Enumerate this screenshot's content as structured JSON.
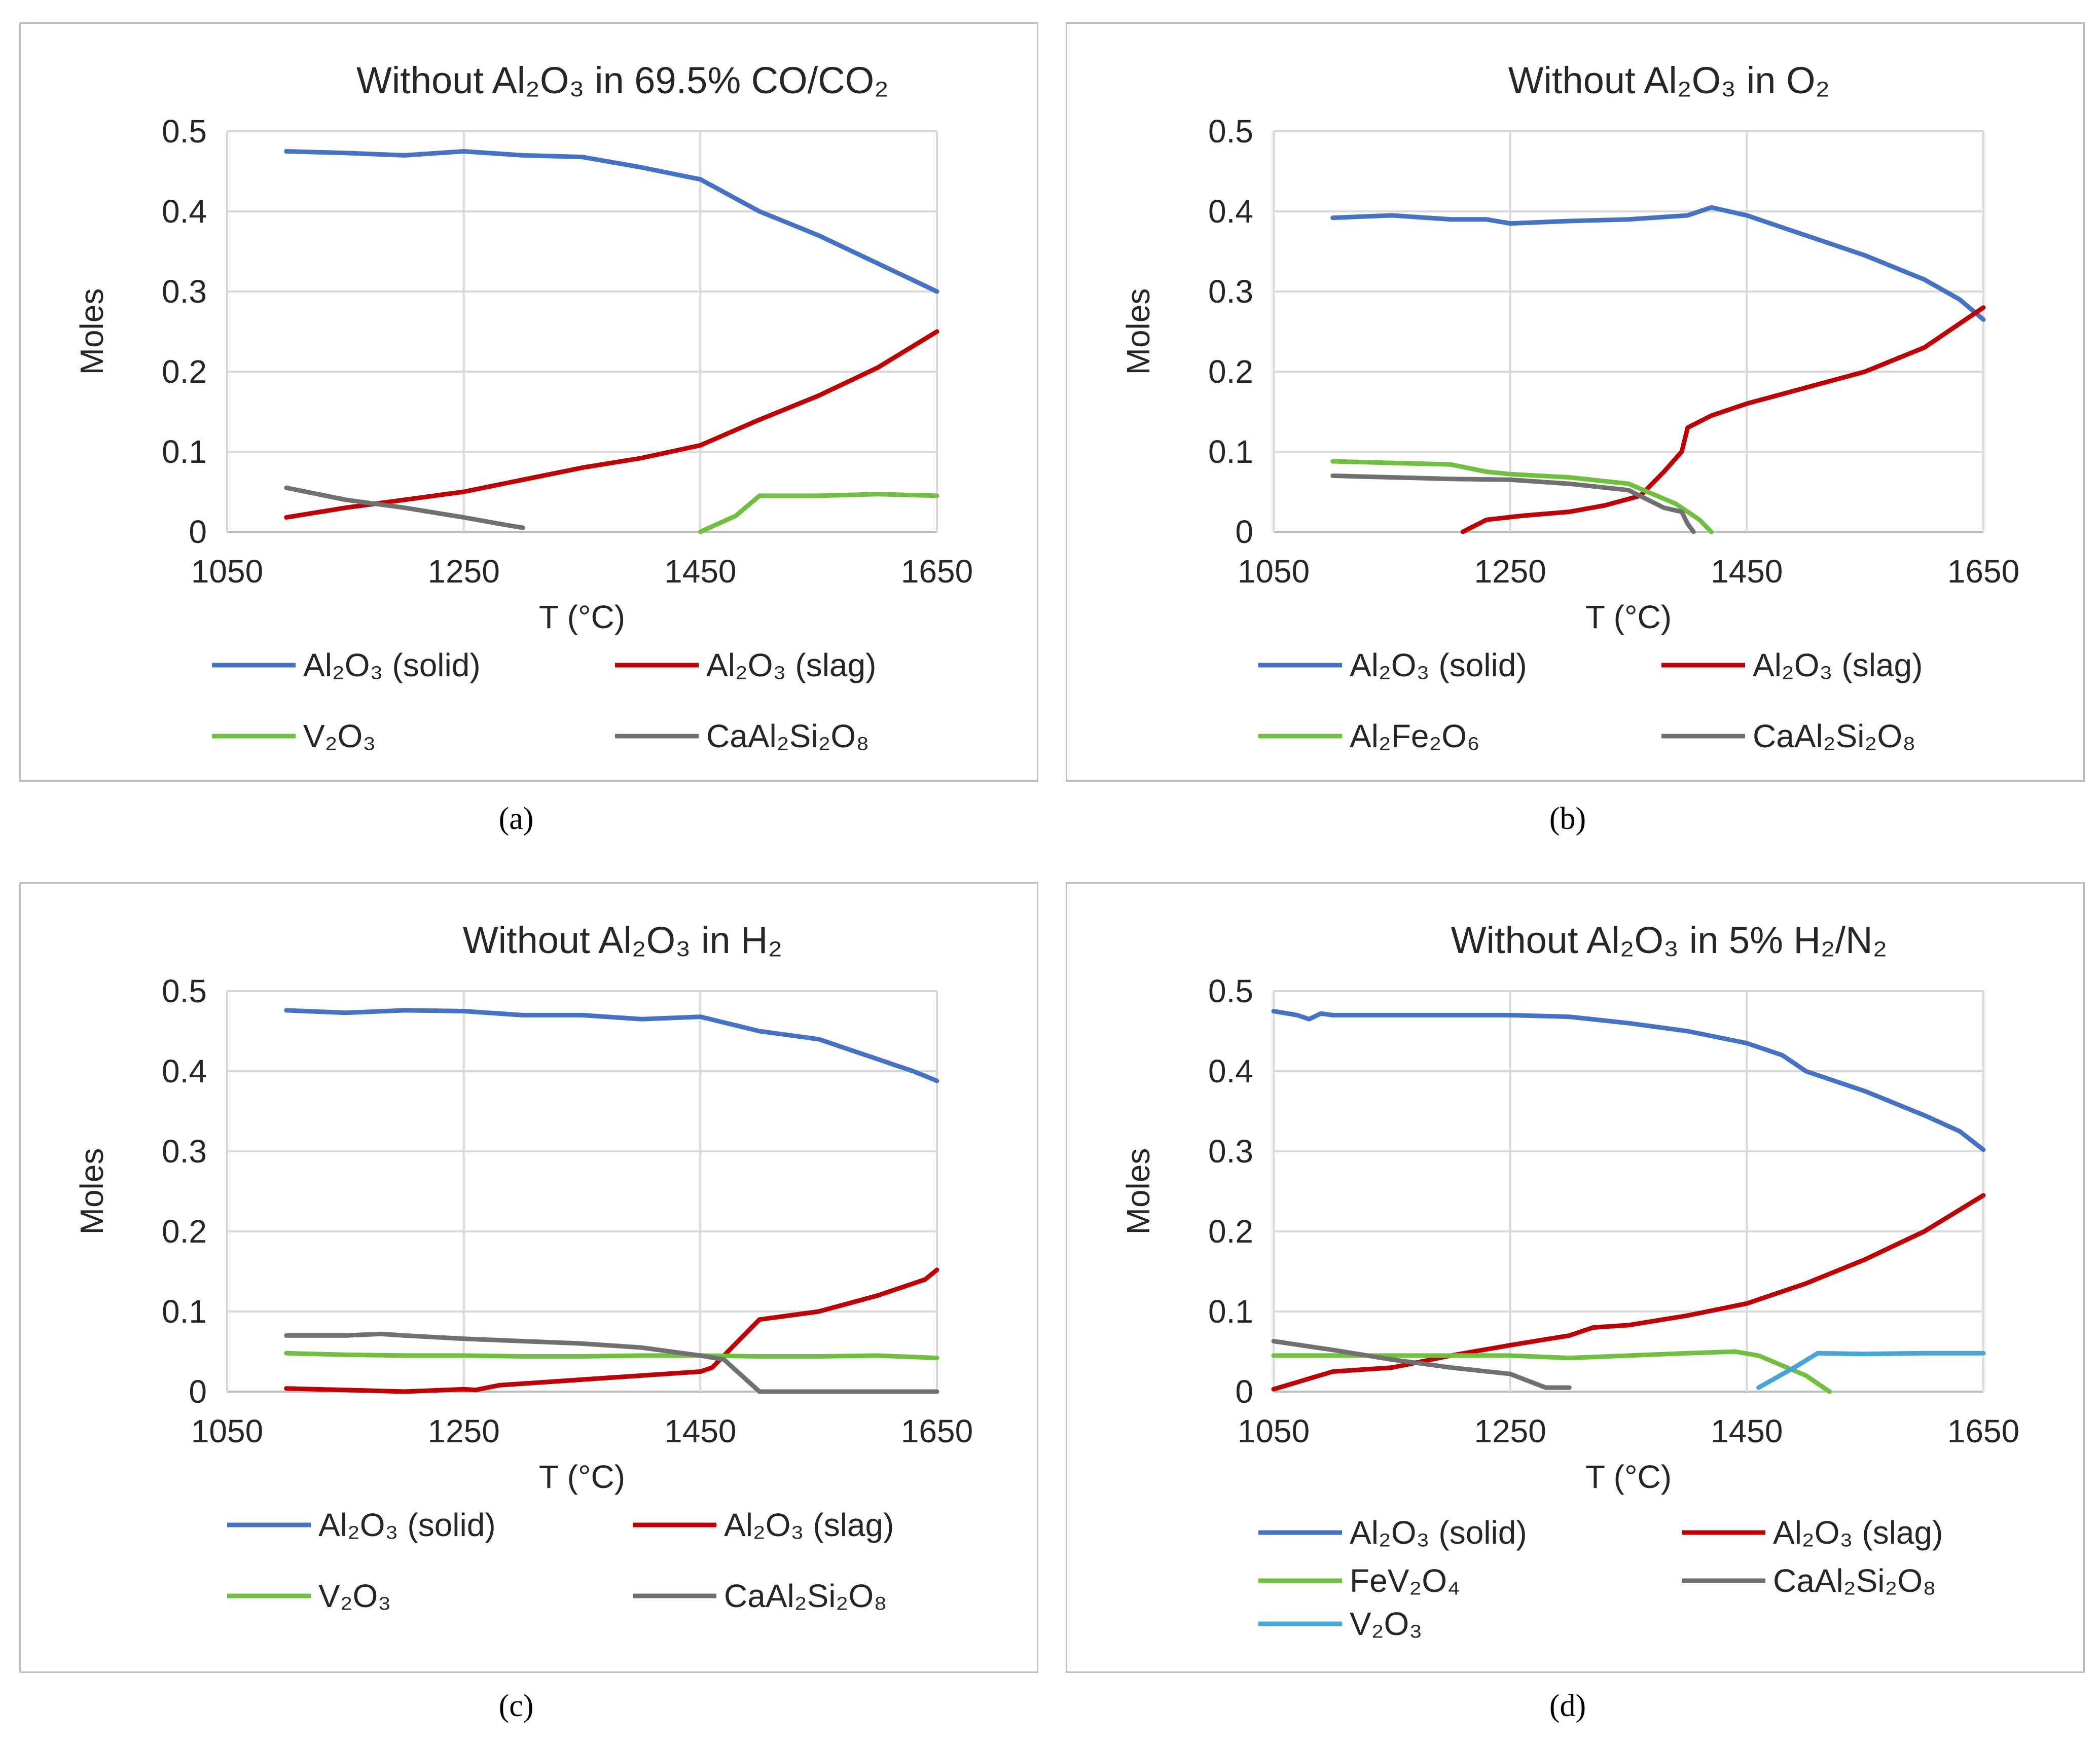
{
  "figure": {
    "panel_labels": [
      "(a)",
      "(b)",
      "(c)",
      "(d)"
    ]
  },
  "colors": {
    "al2o3_solid": "#4472C4",
    "al2o3_slag": "#C00000",
    "green": "#70C040",
    "gray": "#707070",
    "cyan": "#45A5DA",
    "grid": "#D9D9D9",
    "border": "#BFBFBF",
    "text": "#262626"
  },
  "chart_data": [
    {
      "type": "line",
      "title": "Without Al₂O₃ in 69.5% CO/CO₂",
      "xlabel": "T (°C)",
      "ylabel": "Moles",
      "xlim": [
        1050,
        1650
      ],
      "ylim": [
        0,
        0.5
      ],
      "xticks": [
        "1050",
        "1250",
        "1450",
        "1650"
      ],
      "yticks": [
        "0",
        "0.1",
        "0.2",
        "0.3",
        "0.4",
        "0.5"
      ],
      "legend_position": "bottom",
      "series": [
        {
          "name": "Al₂O₃ (solid)",
          "color_key": "al2o3_solid",
          "x": [
            1100,
            1150,
            1200,
            1250,
            1300,
            1350,
            1400,
            1450,
            1500,
            1550,
            1600,
            1650
          ],
          "y": [
            0.475,
            0.473,
            0.47,
            0.475,
            0.47,
            0.468,
            0.455,
            0.44,
            0.4,
            0.37,
            0.335,
            0.3
          ]
        },
        {
          "name": "Al₂O₃ (slag)",
          "color_key": "al2o3_slag",
          "x": [
            1100,
            1150,
            1200,
            1250,
            1300,
            1350,
            1400,
            1450,
            1500,
            1550,
            1600,
            1650
          ],
          "y": [
            0.018,
            0.03,
            0.04,
            0.05,
            0.065,
            0.08,
            0.092,
            0.108,
            0.14,
            0.17,
            0.205,
            0.25
          ]
        },
        {
          "name": "V₂O₃",
          "color_key": "green",
          "x": [
            1450,
            1480,
            1500,
            1550,
            1600,
            1650
          ],
          "y": [
            0.0,
            0.02,
            0.045,
            0.045,
            0.047,
            0.045
          ]
        },
        {
          "name": "CaAl₂Si₂O₈",
          "color_key": "gray",
          "x": [
            1100,
            1150,
            1200,
            1250,
            1280,
            1300
          ],
          "y": [
            0.055,
            0.04,
            0.03,
            0.018,
            0.01,
            0.005
          ]
        }
      ]
    },
    {
      "type": "line",
      "title": "Without Al₂O₃ in O₂",
      "xlabel": "T (°C)",
      "ylabel": "Moles",
      "xlim": [
        1050,
        1650
      ],
      "ylim": [
        0,
        0.5
      ],
      "xticks": [
        "1050",
        "1250",
        "1450",
        "1650"
      ],
      "yticks": [
        "0",
        "0.1",
        "0.2",
        "0.3",
        "0.4",
        "0.5"
      ],
      "legend_position": "bottom",
      "series": [
        {
          "name": "Al₂O₃ (solid)",
          "color_key": "al2o3_solid",
          "x": [
            1100,
            1150,
            1200,
            1230,
            1250,
            1300,
            1350,
            1400,
            1420,
            1450,
            1500,
            1550,
            1600,
            1630,
            1650
          ],
          "y": [
            0.392,
            0.395,
            0.39,
            0.39,
            0.385,
            0.388,
            0.39,
            0.395,
            0.405,
            0.395,
            0.37,
            0.345,
            0.315,
            0.29,
            0.265
          ]
        },
        {
          "name": "Al₂O₃ (slag)",
          "color_key": "al2o3_slag",
          "x": [
            1210,
            1230,
            1260,
            1300,
            1330,
            1360,
            1380,
            1395,
            1400,
            1420,
            1450,
            1500,
            1550,
            1600,
            1650
          ],
          "y": [
            0.0,
            0.015,
            0.02,
            0.025,
            0.033,
            0.045,
            0.075,
            0.1,
            0.13,
            0.145,
            0.16,
            0.18,
            0.2,
            0.23,
            0.28
          ]
        },
        {
          "name": "Al₂Fe₂O₆",
          "color_key": "green",
          "x": [
            1100,
            1150,
            1200,
            1230,
            1250,
            1300,
            1350,
            1390,
            1410,
            1420
          ],
          "y": [
            0.088,
            0.086,
            0.084,
            0.075,
            0.072,
            0.068,
            0.06,
            0.035,
            0.015,
            0.0
          ]
        },
        {
          "name": "CaAl₂Si₂O₈",
          "color_key": "gray",
          "x": [
            1100,
            1150,
            1200,
            1250,
            1300,
            1350,
            1380,
            1395,
            1400,
            1405
          ],
          "y": [
            0.07,
            0.068,
            0.066,
            0.065,
            0.06,
            0.052,
            0.03,
            0.025,
            0.01,
            0.0
          ]
        }
      ]
    },
    {
      "type": "line",
      "title": "Without Al₂O₃ in H₂",
      "xlabel": "T (°C)",
      "ylabel": "Moles",
      "xlim": [
        1050,
        1650
      ],
      "ylim": [
        0,
        0.5
      ],
      "xticks": [
        "1050",
        "1250",
        "1450",
        "1650"
      ],
      "yticks": [
        "0",
        "0.1",
        "0.2",
        "0.3",
        "0.4",
        "0.5"
      ],
      "legend_position": "bottom",
      "series": [
        {
          "name": "Al₂O₃ (solid)",
          "color_key": "al2o3_solid",
          "x": [
            1100,
            1150,
            1200,
            1250,
            1300,
            1350,
            1400,
            1450,
            1500,
            1550,
            1600,
            1630,
            1650
          ],
          "y": [
            0.476,
            0.473,
            0.476,
            0.475,
            0.47,
            0.47,
            0.465,
            0.468,
            0.45,
            0.44,
            0.415,
            0.4,
            0.388
          ]
        },
        {
          "name": "Al₂O₃ (slag)",
          "color_key": "al2o3_slag",
          "x": [
            1100,
            1150,
            1200,
            1250,
            1260,
            1280,
            1300,
            1350,
            1400,
            1450,
            1460,
            1480,
            1500,
            1550,
            1600,
            1640,
            1650
          ],
          "y": [
            0.004,
            0.002,
            0.0,
            0.003,
            0.002,
            0.008,
            0.01,
            0.015,
            0.02,
            0.025,
            0.03,
            0.06,
            0.09,
            0.1,
            0.12,
            0.14,
            0.152
          ]
        },
        {
          "name": "V₂O₃",
          "color_key": "green",
          "x": [
            1100,
            1150,
            1200,
            1250,
            1300,
            1350,
            1400,
            1450,
            1500,
            1550,
            1600,
            1650
          ],
          "y": [
            0.048,
            0.046,
            0.045,
            0.045,
            0.044,
            0.044,
            0.045,
            0.045,
            0.044,
            0.044,
            0.045,
            0.042
          ]
        },
        {
          "name": "CaAl₂Si₂O₈",
          "color_key": "gray",
          "x": [
            1100,
            1150,
            1180,
            1200,
            1250,
            1300,
            1350,
            1400,
            1450,
            1470,
            1485,
            1500,
            1550,
            1650
          ],
          "y": [
            0.07,
            0.07,
            0.072,
            0.07,
            0.066,
            0.063,
            0.06,
            0.055,
            0.045,
            0.04,
            0.02,
            0.0,
            0.0,
            0.0
          ]
        }
      ]
    },
    {
      "type": "line",
      "title": "Without Al₂O₃ in 5% H₂/N₂",
      "xlabel": "T (°C)",
      "ylabel": "Moles",
      "xlim": [
        1050,
        1650
      ],
      "ylim": [
        0,
        0.5
      ],
      "xticks": [
        "1050",
        "1250",
        "1450",
        "1650"
      ],
      "yticks": [
        "0",
        "0.1",
        "0.2",
        "0.3",
        "0.4",
        "0.5"
      ],
      "legend_position": "bottom",
      "series": [
        {
          "name": "Al₂O₃ (solid)",
          "color_key": "al2o3_solid",
          "x": [
            1050,
            1070,
            1080,
            1090,
            1100,
            1150,
            1200,
            1250,
            1300,
            1350,
            1400,
            1450,
            1480,
            1500,
            1550,
            1600,
            1630,
            1650
          ],
          "y": [
            0.475,
            0.47,
            0.465,
            0.472,
            0.47,
            0.47,
            0.47,
            0.47,
            0.468,
            0.46,
            0.45,
            0.435,
            0.42,
            0.4,
            0.375,
            0.345,
            0.325,
            0.302
          ]
        },
        {
          "name": "Al₂O₃ (slag)",
          "color_key": "al2o3_slag",
          "x": [
            1050,
            1100,
            1150,
            1200,
            1250,
            1300,
            1320,
            1350,
            1400,
            1450,
            1500,
            1550,
            1600,
            1650
          ],
          "y": [
            0.003,
            0.025,
            0.03,
            0.045,
            0.058,
            0.07,
            0.08,
            0.083,
            0.095,
            0.11,
            0.135,
            0.165,
            0.2,
            0.245
          ]
        },
        {
          "name": "FeV₂O₄",
          "color_key": "green",
          "x": [
            1050,
            1100,
            1150,
            1200,
            1250,
            1300,
            1350,
            1400,
            1440,
            1460,
            1500,
            1520
          ],
          "y": [
            0.045,
            0.045,
            0.045,
            0.045,
            0.045,
            0.042,
            0.045,
            0.048,
            0.05,
            0.045,
            0.02,
            0.0
          ]
        },
        {
          "name": "CaAl₂Si₂O₈",
          "color_key": "gray",
          "x": [
            1050,
            1100,
            1150,
            1200,
            1250,
            1280,
            1300
          ],
          "y": [
            0.063,
            0.052,
            0.04,
            0.03,
            0.022,
            0.005,
            0.005
          ]
        },
        {
          "name": "V₂O₃",
          "color_key": "cyan",
          "x": [
            1460,
            1490,
            1510,
            1550,
            1600,
            1650
          ],
          "y": [
            0.005,
            0.03,
            0.048,
            0.047,
            0.048,
            0.048
          ]
        }
      ]
    }
  ]
}
